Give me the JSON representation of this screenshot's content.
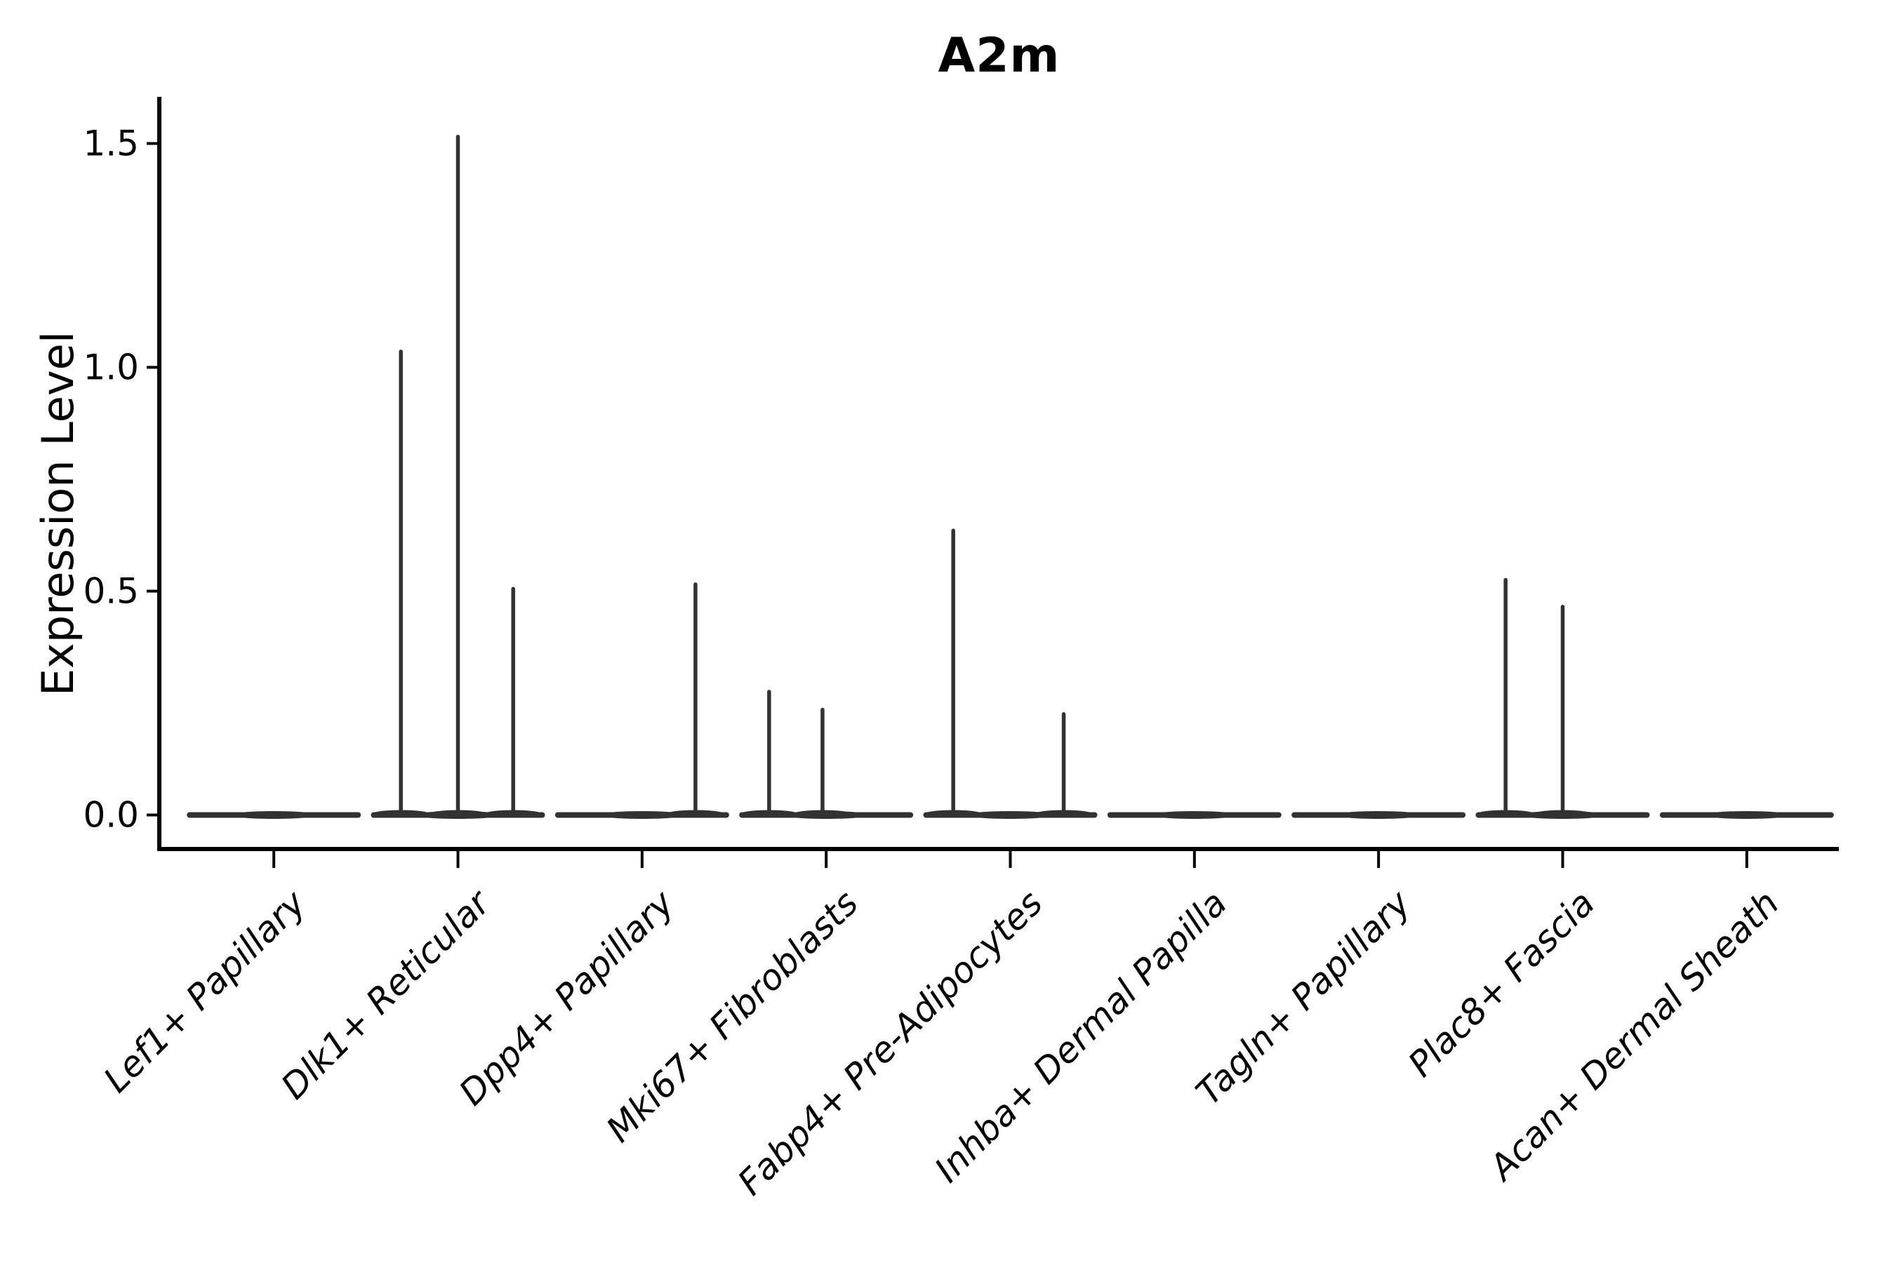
{
  "figure": {
    "title": "A2m",
    "ylabel": "Expression Level"
  },
  "chart_data": {
    "type": "violin",
    "title": "A2m",
    "xlabel": "",
    "ylabel": "Expression Level",
    "ytick_labels": [
      "0.0",
      "0.5",
      "1.0",
      "1.5"
    ],
    "ytick_values": [
      0,
      0.5,
      1.0,
      1.5
    ],
    "ylim": [
      -0.076,
      1.601
    ],
    "grid": false,
    "legend": "none",
    "violin_color": "#323232",
    "axis_color": "#000000",
    "categories": [
      "Lef1+ Papillary",
      "Dlk1+ Reticular",
      "Dpp4+ Papillary",
      "Mki67+ Fibroblasts",
      "Fabp4+ Pre-Adipocytes",
      "Inhba+ Dermal Papilla",
      "Tagln+ Papillary",
      "Plac8+ Fascia",
      "Acan+ Dermal Sheath"
    ],
    "series": [
      {
        "category": "Lef1+ Papillary",
        "zero_bulk_value": 0.0,
        "spikes": []
      },
      {
        "category": "Dlk1+ Reticular",
        "zero_bulk_value": 0.0,
        "spikes": [
          {
            "value": 1.04,
            "offset_frac": -0.31
          },
          {
            "value": 1.52,
            "offset_frac": 0.0
          },
          {
            "value": 0.51,
            "offset_frac": 0.3
          }
        ]
      },
      {
        "category": "Dpp4+ Papillary",
        "zero_bulk_value": 0.0,
        "spikes": [
          {
            "value": 0.52,
            "offset_frac": 0.29
          }
        ]
      },
      {
        "category": "Mki67+ Fibroblasts",
        "zero_bulk_value": 0.0,
        "spikes": [
          {
            "value": 0.28,
            "offset_frac": -0.31
          },
          {
            "value": 0.24,
            "offset_frac": -0.02
          }
        ]
      },
      {
        "category": "Fabp4+ Pre-Adipocytes",
        "zero_bulk_value": 0.0,
        "spikes": [
          {
            "value": 0.64,
            "offset_frac": -0.31
          },
          {
            "value": 0.23,
            "offset_frac": 0.29
          }
        ]
      },
      {
        "category": "Inhba+ Dermal Papilla",
        "zero_bulk_value": 0.0,
        "spikes": []
      },
      {
        "category": "Tagln+ Papillary",
        "zero_bulk_value": 0.0,
        "spikes": []
      },
      {
        "category": "Plac8+ Fascia",
        "zero_bulk_value": 0.0,
        "spikes": [
          {
            "value": 0.53,
            "offset_frac": -0.31
          },
          {
            "value": 0.47,
            "offset_frac": 0.0
          }
        ]
      },
      {
        "category": "Acan+ Dermal Sheath",
        "zero_bulk_value": 0.0,
        "spikes": []
      }
    ]
  }
}
